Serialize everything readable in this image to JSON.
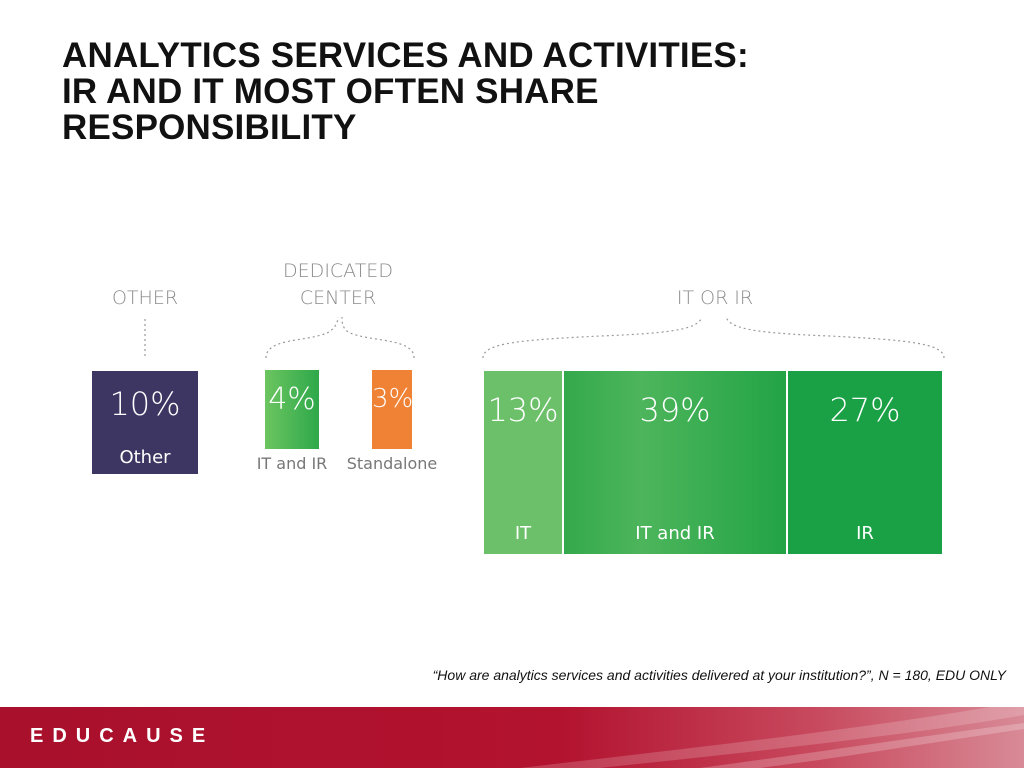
{
  "title": {
    "line1": "ANALYTICS SERVICES AND ACTIVITIES:",
    "line2": "IR AND IT MOST OFTEN SHARE",
    "line3": "RESPONSIBILITY"
  },
  "groups": {
    "other": "OTHER",
    "dedicated_line1": "DEDICATED",
    "dedicated_line2": "CENTER",
    "it_or_ir": "IT OR IR"
  },
  "chart_data": {
    "type": "bar",
    "categories": [
      "Other",
      "IT and IR",
      "Standalone",
      "IT",
      "IT and IR",
      "IR"
    ],
    "values": [
      10,
      4,
      3,
      13,
      39,
      27
    ],
    "value_labels": [
      "10%",
      "4%",
      "3%",
      "13%",
      "39%",
      "27%"
    ],
    "groups": [
      "OTHER",
      "DEDICATED CENTER",
      "DEDICATED CENTER",
      "IT OR IR",
      "IT OR IR",
      "IT OR IR"
    ],
    "colors": [
      "#3d3562",
      "#3fae4a",
      "#f08236",
      "#6cc06a",
      "#2fa84a",
      "#1aa146"
    ]
  },
  "footnote": "“How are analytics services and activities delivered at your institution?”, N = 180, EDU ONLY",
  "footer": {
    "wordmark": "EDUCAUSE"
  },
  "colors": {
    "footer_red": "#b3132f",
    "label_gray": "#8a8a8a"
  }
}
